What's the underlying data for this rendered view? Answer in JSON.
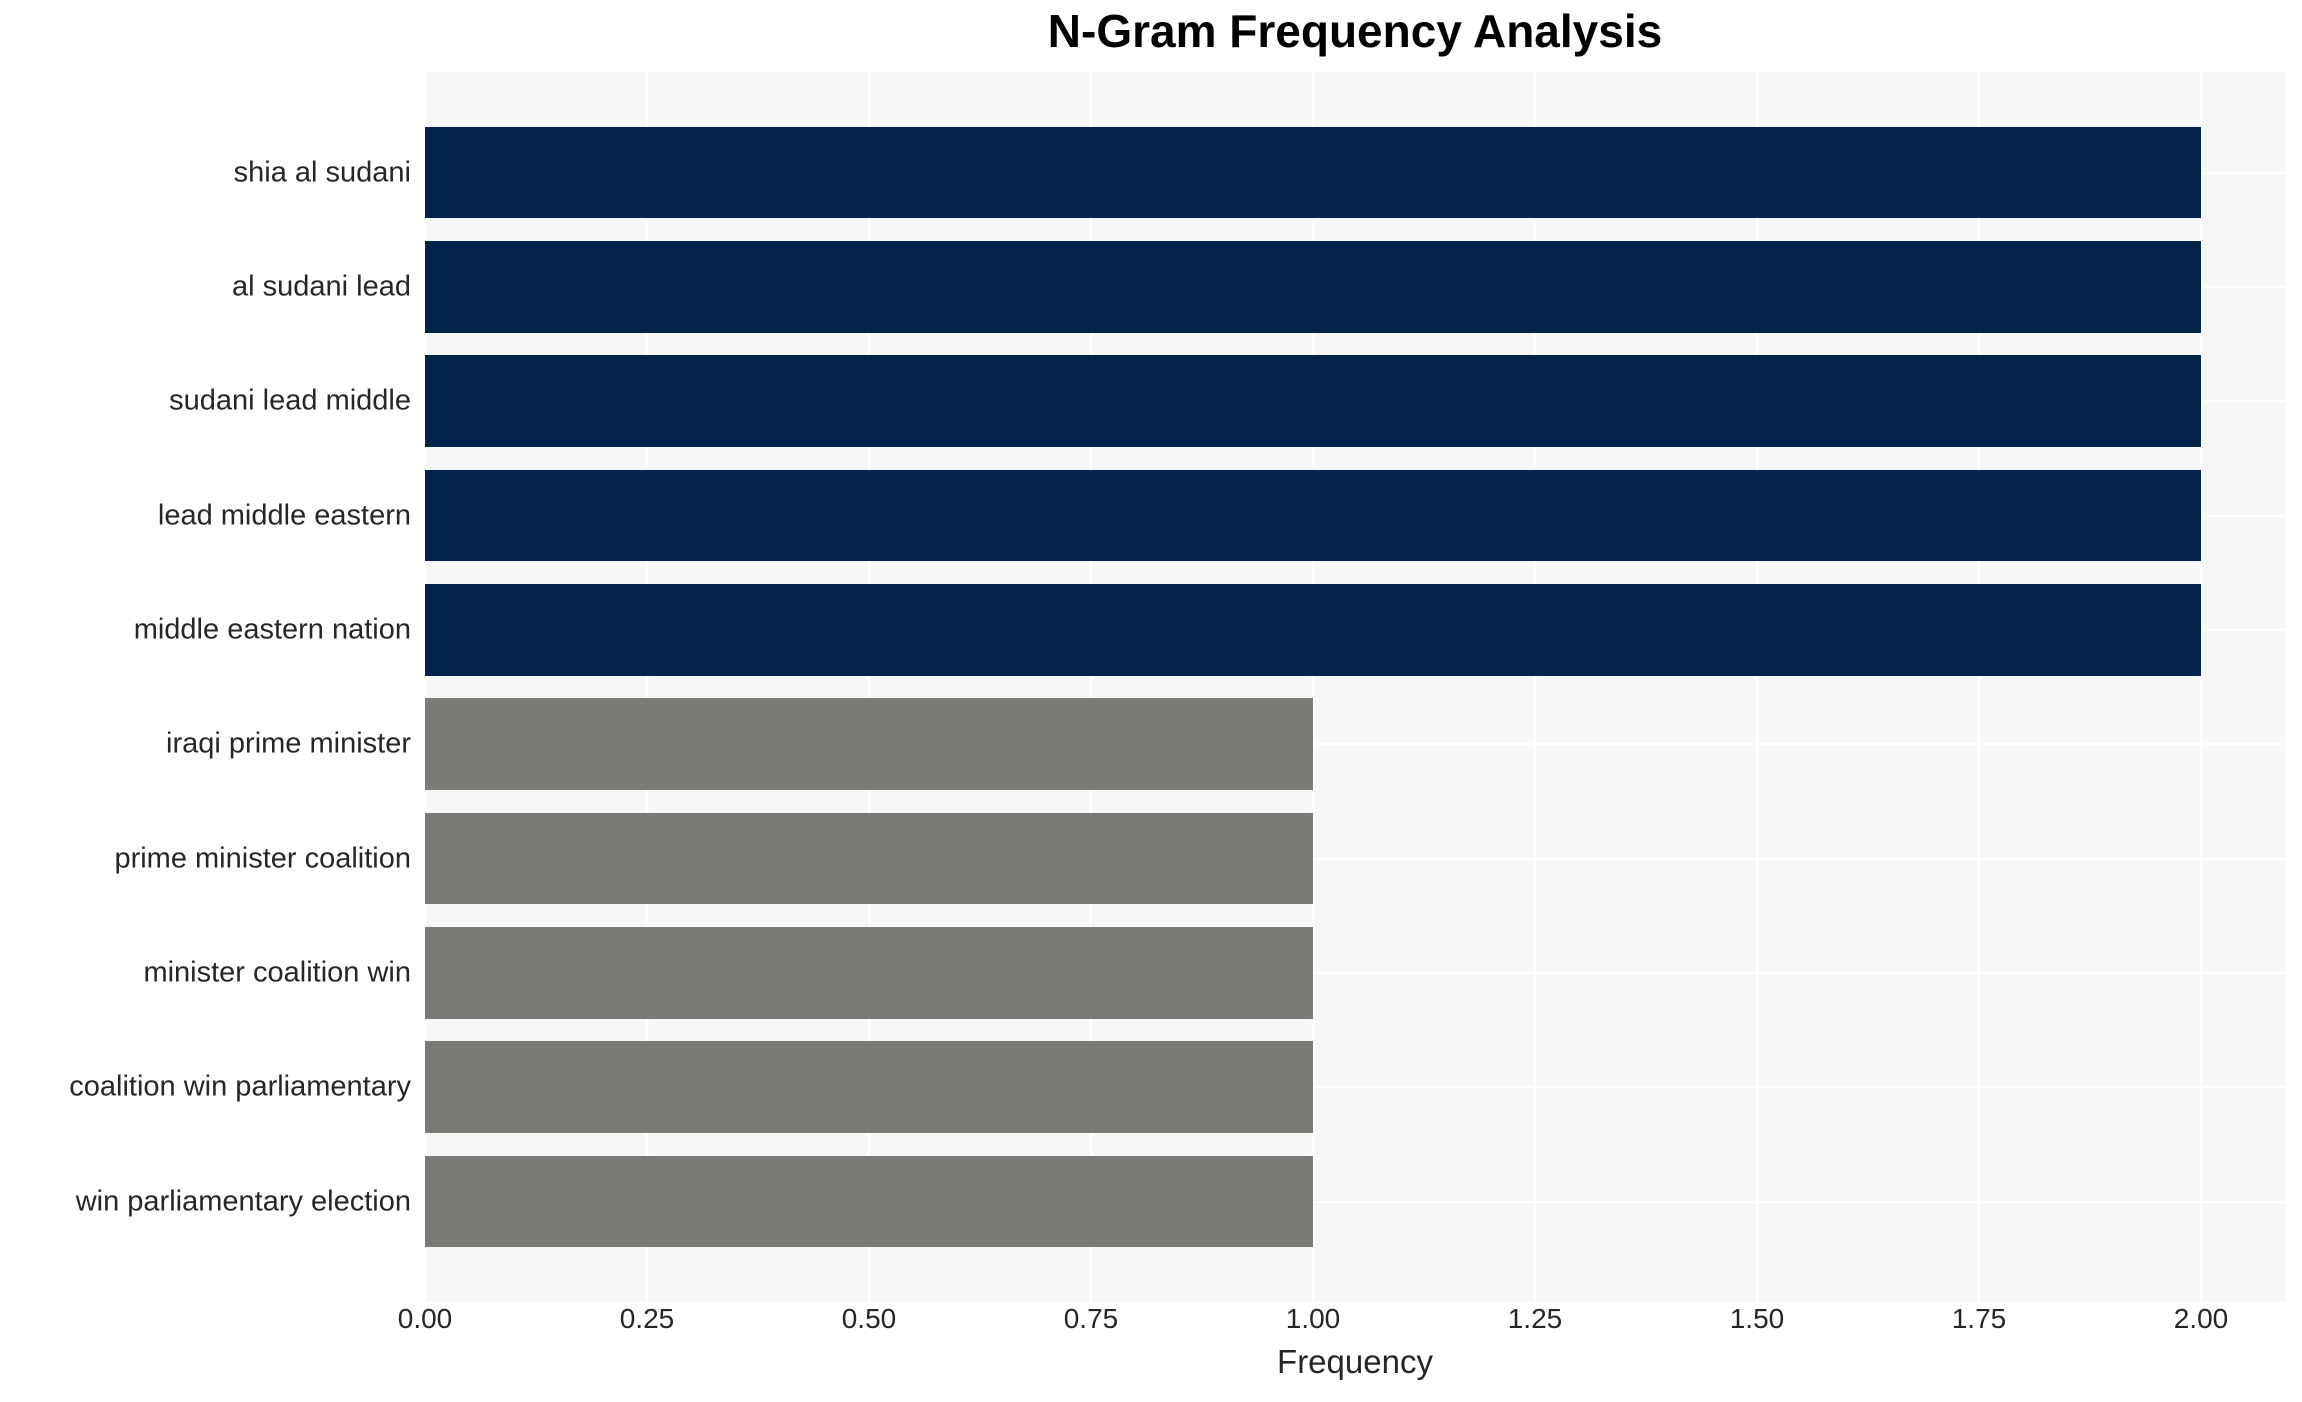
{
  "title": "N-Gram Frequency Analysis",
  "colors": {
    "figure_background": "#ffffff",
    "plot_background": "#f7f7f7",
    "grid_color": "#ffffff",
    "bar_navy": "#03234b",
    "bar_gray": "#7a7a76",
    "title_text": "#000000",
    "axis_text": "#262626"
  },
  "x_axis": {
    "label": "Frequency",
    "ticks": [
      "0.00",
      "0.25",
      "0.50",
      "0.75",
      "1.00",
      "1.25",
      "1.50",
      "1.75",
      "2.00"
    ],
    "tick_values": [
      0,
      0.25,
      0.5,
      0.75,
      1.0,
      1.25,
      1.5,
      1.75,
      2.0
    ]
  },
  "chart_data": {
    "type": "bar",
    "orientation": "horizontal",
    "title": "N-Gram Frequency Analysis",
    "xlabel": "Frequency",
    "ylabel": "",
    "categories": [
      "shia al sudani",
      "al sudani lead",
      "sudani lead middle",
      "lead middle eastern",
      "middle eastern nation",
      "iraqi prime minister",
      "prime minister coalition",
      "minister coalition win",
      "coalition win parliamentary",
      "win parliamentary election"
    ],
    "values": [
      2,
      2,
      2,
      2,
      2,
      1,
      1,
      1,
      1,
      1
    ],
    "bar_colors": [
      "#03234b",
      "#03234b",
      "#03234b",
      "#03234b",
      "#03234b",
      "#7a7a76",
      "#7a7a76",
      "#7a7a76",
      "#7a7a76",
      "#7a7a76"
    ],
    "xlim": [
      0,
      2.0946
    ],
    "xticks": [
      0,
      0.25,
      0.5,
      0.75,
      1.0,
      1.25,
      1.5,
      1.75,
      2.0
    ],
    "grid": true,
    "legend_position": "none"
  }
}
